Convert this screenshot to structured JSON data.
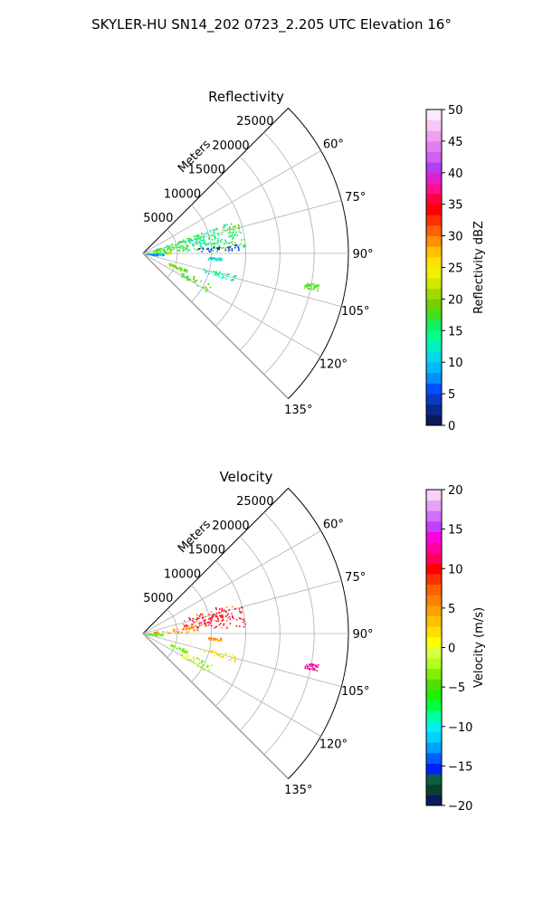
{
  "figure": {
    "title": "SKYLER-HU  SN14_202  0723_2.205 UTC Elevation 16°"
  },
  "chart_data": [
    {
      "type": "heatmap",
      "subtype": "polar-sector (PPI)",
      "title": "Reflectivity",
      "radial_axis_label": "Meters",
      "radial_ticks": [
        "5000",
        "10000",
        "15000",
        "20000",
        "25000"
      ],
      "radial_range": [
        0,
        30000
      ],
      "angular_ticks": [
        "60°",
        "75°",
        "90°",
        "105°",
        "120°",
        "135°"
      ],
      "angular_range_deg": [
        45,
        135
      ],
      "grid": true,
      "colorbar": {
        "label": "Reflectivity dBZ",
        "range": [
          0,
          50
        ],
        "ticks": [
          "0",
          "5",
          "10",
          "15",
          "20",
          "25",
          "30",
          "35",
          "40",
          "45",
          "50"
        ],
        "colors": [
          "#0a1a5c",
          "#0a2a8a",
          "#0a3ac0",
          "#0050ff",
          "#0090ff",
          "#00b8ff",
          "#00d8e8",
          "#00f0c0",
          "#00ff90",
          "#10f060",
          "#40e020",
          "#70d000",
          "#a0d800",
          "#d0e800",
          "#f0f000",
          "#ffe000",
          "#ffc000",
          "#ff9000",
          "#ff6000",
          "#ff3000",
          "#ff0000",
          "#ff0040",
          "#ff1090",
          "#e020d0",
          "#b040f0",
          "#d060f0",
          "#e080f0",
          "#f0a0f0",
          "#f8c8f8",
          "#fce8fc"
        ]
      },
      "echo_regions": [
        {
          "az_range": [
            70,
            86
          ],
          "r_range": [
            1500,
            15000
          ],
          "value": 17
        },
        {
          "az_range": [
            70,
            82
          ],
          "r_range": [
            6000,
            14000
          ],
          "value": 14
        },
        {
          "az_range": [
            84,
            88
          ],
          "r_range": [
            8000,
            14000
          ],
          "value": 4
        },
        {
          "az_range": [
            86,
            90
          ],
          "r_range": [
            500,
            4000
          ],
          "value": 21
        },
        {
          "az_range": [
            90,
            98
          ],
          "r_range": [
            500,
            3000
          ],
          "value": 8
        },
        {
          "az_range": [
            93,
            95
          ],
          "r_range": [
            9500,
            11500
          ],
          "value": 11
        },
        {
          "az_range": [
            110,
            114
          ],
          "r_range": [
            4000,
            7000
          ],
          "value": 19
        },
        {
          "az_range": [
            114,
            121
          ],
          "r_range": [
            6000,
            11000
          ],
          "value": 18
        },
        {
          "az_range": [
            103,
            107
          ],
          "r_range": [
            9000,
            14000
          ],
          "value": 13
        },
        {
          "az_range": [
            100,
            102
          ],
          "r_range": [
            24000,
            26000
          ],
          "value": 18
        }
      ]
    },
    {
      "type": "heatmap",
      "subtype": "polar-sector (PPI)",
      "title": "Velocity",
      "radial_axis_label": "Meters",
      "radial_ticks": [
        "5000",
        "10000",
        "15000",
        "20000",
        "25000"
      ],
      "radial_range": [
        0,
        30000
      ],
      "angular_ticks": [
        "60°",
        "75°",
        "90°",
        "105°",
        "120°",
        "135°"
      ],
      "angular_range_deg": [
        45,
        135
      ],
      "grid": true,
      "colorbar": {
        "label": "Velocity (m/s)",
        "range": [
          -20,
          20
        ],
        "ticks": [
          "−20",
          "−15",
          "−10",
          "−5",
          "0",
          "5",
          "10",
          "15",
          "20"
        ],
        "colors": [
          "#0a1a5c",
          "#0a4030",
          "#0a6040",
          "#0020ff",
          "#0060ff",
          "#00a0ff",
          "#00d0ff",
          "#00f0f0",
          "#00ffa0",
          "#00ff40",
          "#20f000",
          "#50e000",
          "#80f000",
          "#b0ff20",
          "#d8ff40",
          "#ffff00",
          "#ffe000",
          "#ffc000",
          "#ffa000",
          "#ff8000",
          "#ff6000",
          "#ff3000",
          "#ff0000",
          "#ff0060",
          "#ff00a0",
          "#ff00e0",
          "#c040ff",
          "#d070ff",
          "#e8a0f8",
          "#f8d0f8"
        ]
      },
      "echo_regions": [
        {
          "az_range": [
            70,
            86
          ],
          "r_range": [
            6000,
            15000
          ],
          "value": 9
        },
        {
          "az_range": [
            74,
            80
          ],
          "r_range": [
            8000,
            14000
          ],
          "value": 11
        },
        {
          "az_range": [
            80,
            88
          ],
          "r_range": [
            1500,
            8000
          ],
          "value": 5
        },
        {
          "az_range": [
            88,
            96
          ],
          "r_range": [
            500,
            3000
          ],
          "value": -4
        },
        {
          "az_range": [
            93,
            95
          ],
          "r_range": [
            9500,
            11500
          ],
          "value": 5
        },
        {
          "az_range": [
            110,
            114
          ],
          "r_range": [
            4000,
            7000
          ],
          "value": -3
        },
        {
          "az_range": [
            114,
            121
          ],
          "r_range": [
            6000,
            11000
          ],
          "value": -2
        },
        {
          "az_range": [
            103,
            107
          ],
          "r_range": [
            9000,
            14000
          ],
          "value": 1
        },
        {
          "az_range": [
            100,
            102
          ],
          "r_range": [
            24000,
            26000
          ],
          "value": 13
        }
      ]
    }
  ]
}
